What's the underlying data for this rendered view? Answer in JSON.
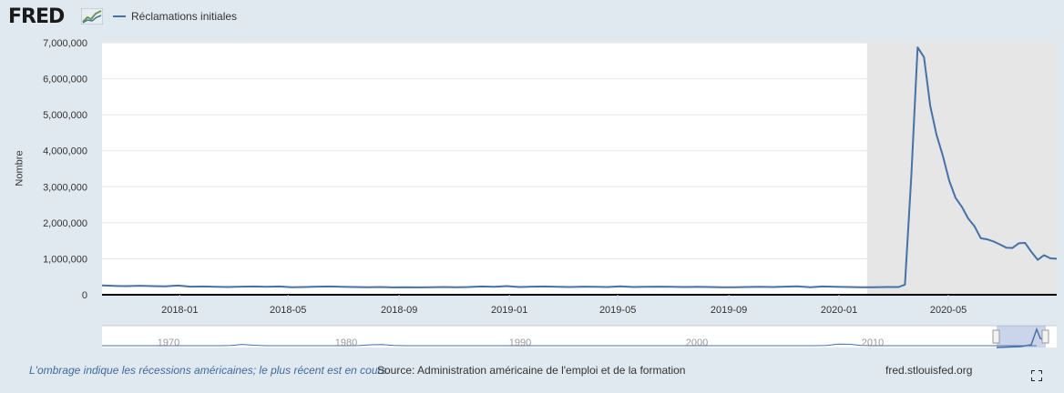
{
  "header": {
    "logo_text": "FRED",
    "legend_label": "Réclamations initiales"
  },
  "footer": {
    "recession_note": "L'ombrage indique les récessions américaines; le plus récent est en cours.",
    "source": "Source: Administration américaine de l'emploi et de la formation",
    "site": "fred.stlouisfed.org"
  },
  "navigator": {
    "ticks": [
      "1970",
      "1980",
      "1990",
      "2000",
      "2010"
    ]
  },
  "icons": {
    "logo_mark": "fred-graph-icon",
    "fullscreen": "fullscreen-icon"
  },
  "colors": {
    "series": "#4572a7",
    "recession": "#e6e6e6",
    "background": "#e1e9f0"
  },
  "chart_data": {
    "type": "line",
    "title": "",
    "xlabel": "",
    "ylabel": "Nombre",
    "ylim": [
      0,
      7000000
    ],
    "yticks": [
      0,
      1000000,
      2000000,
      3000000,
      4000000,
      5000000,
      6000000,
      7000000
    ],
    "ytick_labels": [
      "0",
      "1,000,000",
      "2,000,000",
      "3,000,000",
      "4,000,000",
      "5,000,000",
      "6,000,000",
      "7,000,000"
    ],
    "xlim": [
      "2017-10-07",
      "2020-08-29"
    ],
    "xtick_labels": [
      "2018-01",
      "2018-05",
      "2018-09",
      "2019-01",
      "2019-05",
      "2019-09",
      "2020-01",
      "2020-05"
    ],
    "xtick_dates": [
      "2018-01-01",
      "2018-05-01",
      "2018-09-01",
      "2019-01-01",
      "2019-05-01",
      "2019-09-01",
      "2020-01-01",
      "2020-05-01"
    ],
    "recession": {
      "start": "2020-02-01",
      "end": "2020-08-29"
    },
    "legend": "top-left",
    "series": [
      {
        "name": "Réclamations initiales",
        "x": [
          "2017-10-07",
          "2017-10-21",
          "2017-11-04",
          "2017-11-18",
          "2017-12-02",
          "2017-12-16",
          "2017-12-30",
          "2018-01-13",
          "2018-01-27",
          "2018-02-10",
          "2018-02-24",
          "2018-03-10",
          "2018-03-24",
          "2018-04-07",
          "2018-04-21",
          "2018-05-05",
          "2018-05-19",
          "2018-06-02",
          "2018-06-16",
          "2018-06-30",
          "2018-07-14",
          "2018-07-28",
          "2018-08-11",
          "2018-08-25",
          "2018-09-08",
          "2018-09-22",
          "2018-10-06",
          "2018-10-20",
          "2018-11-03",
          "2018-11-17",
          "2018-12-01",
          "2018-12-15",
          "2018-12-29",
          "2019-01-12",
          "2019-01-26",
          "2019-02-09",
          "2019-02-23",
          "2019-03-09",
          "2019-03-23",
          "2019-04-06",
          "2019-04-20",
          "2019-05-04",
          "2019-05-18",
          "2019-06-01",
          "2019-06-15",
          "2019-06-29",
          "2019-07-13",
          "2019-07-27",
          "2019-08-10",
          "2019-08-24",
          "2019-09-07",
          "2019-09-21",
          "2019-10-05",
          "2019-10-19",
          "2019-11-02",
          "2019-11-16",
          "2019-11-30",
          "2019-12-14",
          "2019-12-28",
          "2020-01-11",
          "2020-01-25",
          "2020-02-08",
          "2020-02-22",
          "2020-03-07",
          "2020-03-14",
          "2020-03-21",
          "2020-03-28",
          "2020-04-04",
          "2020-04-11",
          "2020-04-18",
          "2020-04-25",
          "2020-05-02",
          "2020-05-09",
          "2020-05-16",
          "2020-05-23",
          "2020-05-30",
          "2020-06-06",
          "2020-06-13",
          "2020-06-20",
          "2020-06-27",
          "2020-07-04",
          "2020-07-11",
          "2020-07-18",
          "2020-07-25",
          "2020-08-01",
          "2020-08-08",
          "2020-08-15",
          "2020-08-22",
          "2020-08-29"
        ],
        "y": [
          260000,
          245000,
          240000,
          250000,
          240000,
          235000,
          255000,
          225000,
          230000,
          220000,
          215000,
          225000,
          230000,
          220000,
          230000,
          210000,
          215000,
          225000,
          230000,
          220000,
          215000,
          210000,
          215000,
          205000,
          210000,
          205000,
          210000,
          215000,
          210000,
          215000,
          230000,
          220000,
          240000,
          215000,
          225000,
          230000,
          220000,
          215000,
          225000,
          220000,
          215000,
          235000,
          215000,
          220000,
          225000,
          220000,
          215000,
          220000,
          215000,
          210000,
          210000,
          215000,
          220000,
          215000,
          225000,
          235000,
          210000,
          230000,
          220000,
          215000,
          210000,
          210000,
          215000,
          215000,
          280000,
          3300000,
          6870000,
          6600000,
          5240000,
          4440000,
          3850000,
          3170000,
          2690000,
          2440000,
          2120000,
          1900000,
          1570000,
          1540000,
          1480000,
          1400000,
          1310000,
          1300000,
          1430000,
          1440000,
          1190000,
          970000,
          1100000,
          1010000,
          1000000
        ]
      }
    ]
  }
}
